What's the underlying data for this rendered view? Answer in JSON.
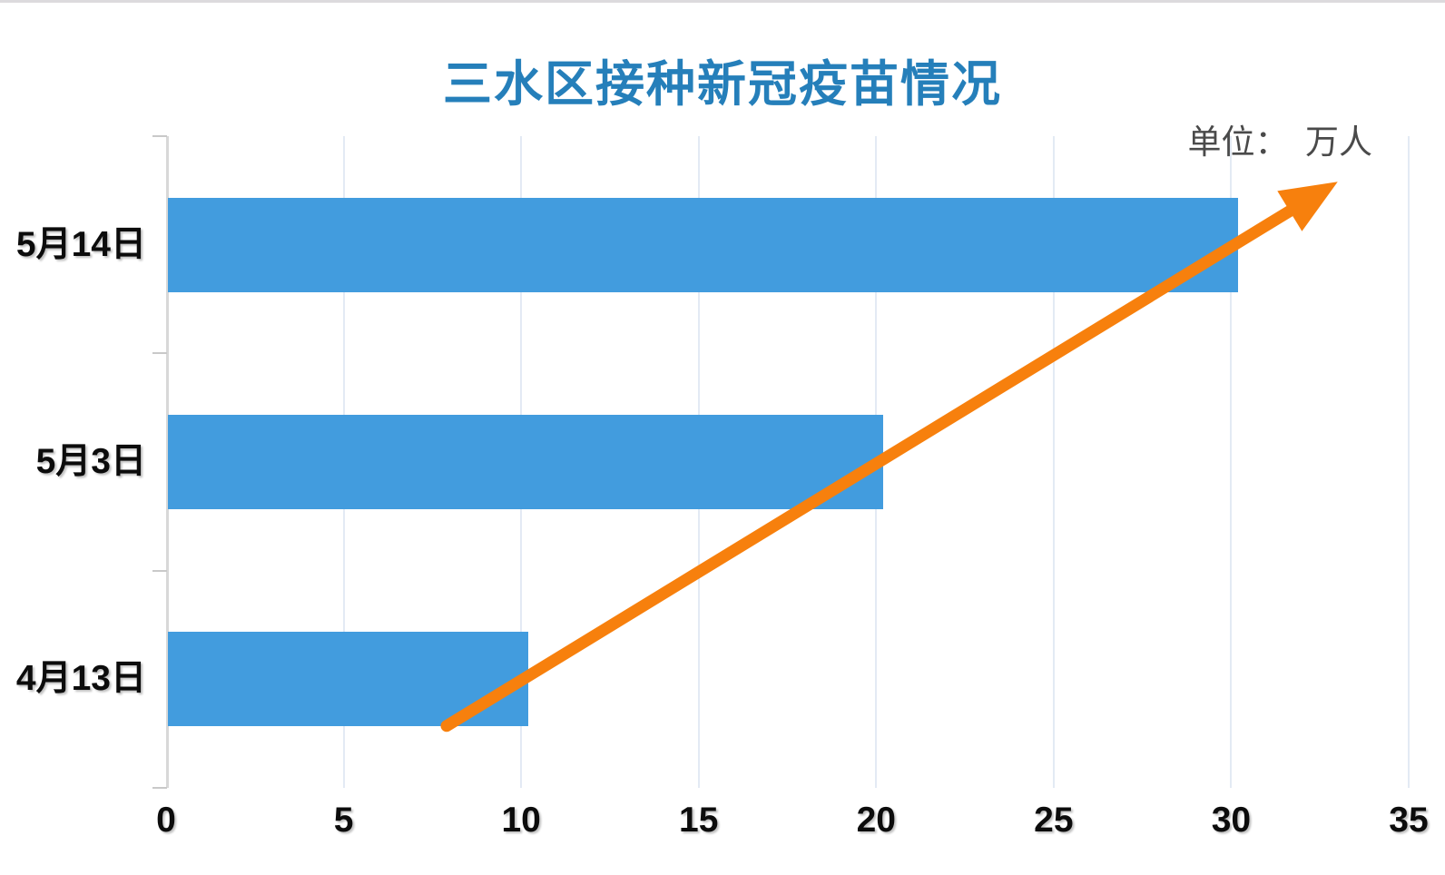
{
  "title": {
    "text": "三水区接种新冠疫苗情况",
    "color": "#257FBA"
  },
  "unit_label": {
    "text": "单位：　万人",
    "color": "#4a4a4a"
  },
  "chart_data": {
    "type": "bar",
    "orientation": "horizontal",
    "title": "三水区接种新冠疫苗情况",
    "unit": "万人",
    "categories": [
      "5月14日",
      "5月3日",
      "4月13日"
    ],
    "values": [
      30.2,
      20.2,
      10.2
    ],
    "xlim": [
      0,
      35
    ],
    "x_ticks": [
      0,
      5,
      10,
      15,
      20,
      25,
      30,
      35
    ],
    "grid": true,
    "legend": "none",
    "bar_color": "#429CDE",
    "gridline_color": "#e3eaf4",
    "axis_line_color": "#d8d8d8",
    "tick_mark_color": "#c9c9c9",
    "annotation": {
      "type": "trend-arrow",
      "color": "#F7800D",
      "from": {
        "x": 7.9,
        "y_frac": 0.905
      },
      "to": {
        "x": 33.0,
        "y_frac": 0.07
      }
    }
  }
}
